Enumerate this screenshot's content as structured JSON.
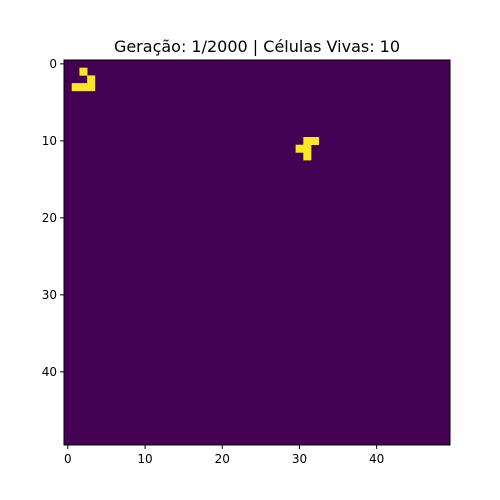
{
  "chart_data": {
    "type": "heatmap",
    "title": "Geração: 1/2000 | Células Vivas: 10",
    "grid_size": [
      50,
      50
    ],
    "colors": {
      "dead": "#440154",
      "alive": "#fde725"
    },
    "x_ticks": [
      0,
      10,
      20,
      30,
      40
    ],
    "y_ticks": [
      0,
      10,
      20,
      30,
      40
    ],
    "xlim": [
      -0.5,
      49.5
    ],
    "ylim": [
      49.5,
      -0.5
    ],
    "grid": false,
    "live_cells": [
      {
        "row": 1,
        "col": 2
      },
      {
        "row": 2,
        "col": 3
      },
      {
        "row": 3,
        "col": 1
      },
      {
        "row": 3,
        "col": 2
      },
      {
        "row": 3,
        "col": 3
      },
      {
        "row": 10,
        "col": 31
      },
      {
        "row": 10,
        "col": 32
      },
      {
        "row": 11,
        "col": 30
      },
      {
        "row": 11,
        "col": 31
      },
      {
        "row": 12,
        "col": 31
      }
    ]
  }
}
